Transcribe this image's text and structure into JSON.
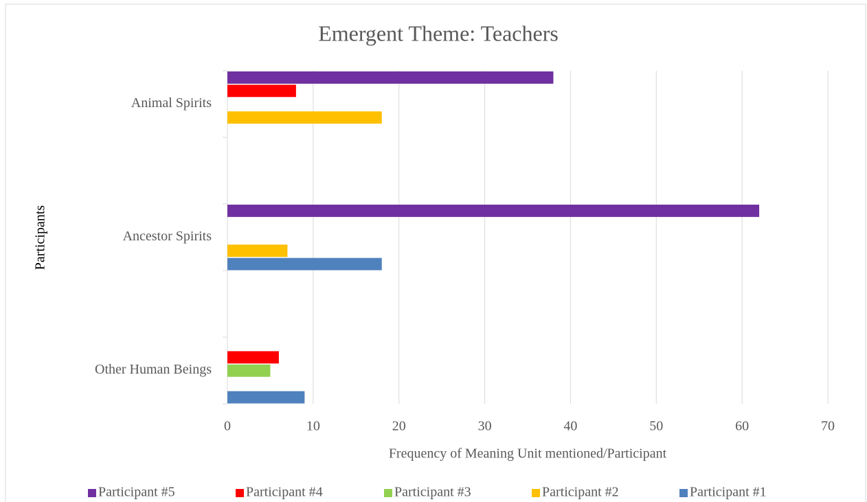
{
  "chart_data": {
    "type": "hbar",
    "title": "Emergent Theme: Teachers",
    "x_label": "Frequency of Meaning Unit mentioned/Participant",
    "y_label": "Participants",
    "categories": [
      "Animal Spirits",
      "Ancestor Spirits",
      "Other Human Beings"
    ],
    "series": [
      {
        "name": "Participant #5",
        "color": "#7030a0",
        "values": [
          38,
          62,
          null
        ]
      },
      {
        "name": "Participant #4",
        "color": "#ff0000",
        "values": [
          8,
          null,
          6
        ]
      },
      {
        "name": "Participant #3",
        "color": "#92d050",
        "values": [
          null,
          null,
          5
        ]
      },
      {
        "name": "Participant #2",
        "color": "#ffc000",
        "values": [
          18,
          7,
          null
        ]
      },
      {
        "name": "Participant #1",
        "color": "#4f81bd",
        "values": [
          null,
          18,
          9
        ]
      }
    ],
    "xlim": [
      0,
      70
    ],
    "xticks": [
      0,
      10,
      20,
      30,
      40,
      50,
      60,
      70
    ],
    "grid": true,
    "legend": "bottom"
  }
}
